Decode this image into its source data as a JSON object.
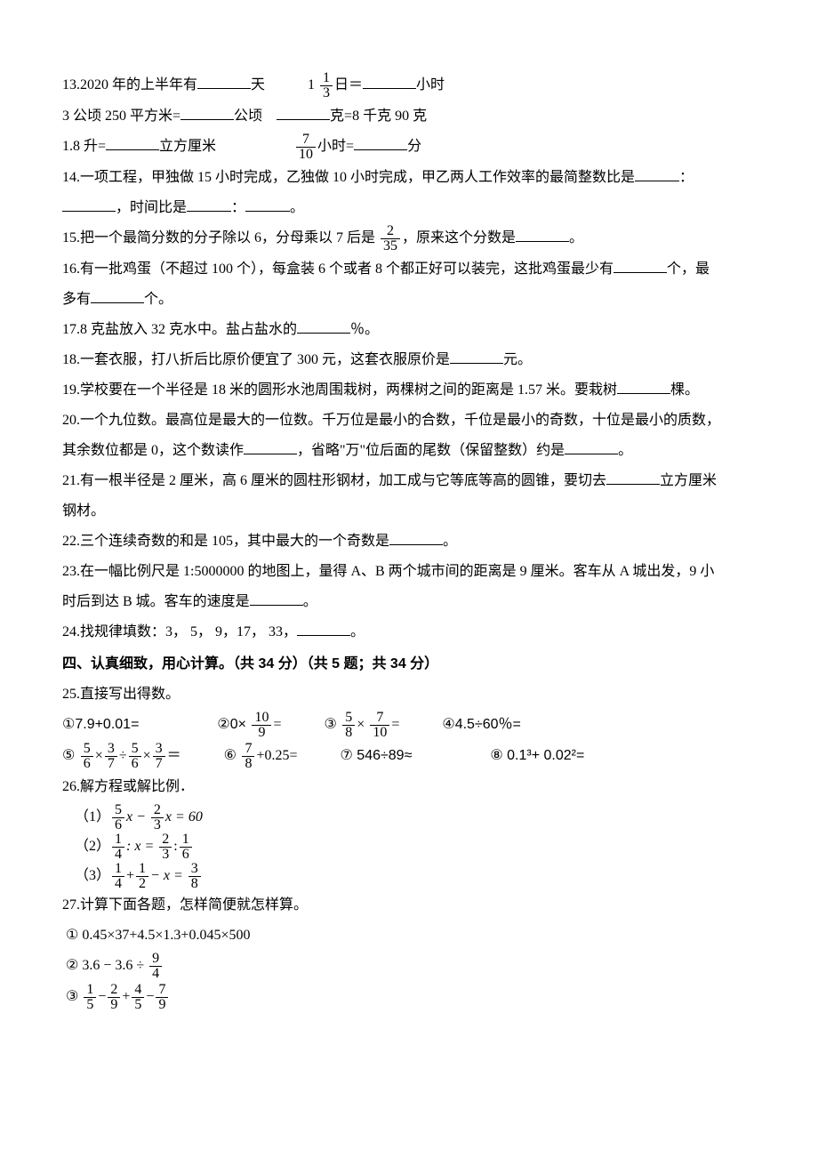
{
  "q13": {
    "part1_pre": "13.2020 年的上半年有",
    "part1_post": "天",
    "part2_pre": "1 ",
    "part2_frac_num": "1",
    "part2_frac_den": "3",
    "part2_mid": "日＝",
    "part2_post": "小时",
    "line2_a_pre": "3 公顷 250 平方米=",
    "line2_a_post": "公顷",
    "line2_b_post": "克=8 千克 90 克",
    "line3_a_pre": "1.8 升=",
    "line3_a_post": "立方厘米",
    "line3_frac_num": "7",
    "line3_frac_den": "10",
    "line3_b_mid": "小时=",
    "line3_b_post": "分"
  },
  "q14": {
    "text_a": "14.一项工程，甲独做 15 小时完成，乙独做 10 小时完成，甲乙两人工作效率的最简整数比是",
    "text_b": "：",
    "text_c": "，时间比是",
    "text_d": "：",
    "text_e": "。"
  },
  "q15": {
    "pre": "15.把一个最简分数的分子除以 6，分母乘以 7 后是 ",
    "frac_num": "2",
    "frac_den": "35",
    "mid": "，原来这个分数是",
    "post": "。"
  },
  "q16": {
    "line1": "16.有一批鸡蛋（不超过 100 个），每盒装 6 个或者 8 个都正好可以装完，这批鸡蛋最少有",
    "line1_post": "个，最",
    "line2_pre": "多有",
    "line2_post": "个。"
  },
  "q17": {
    "pre": "17.8 克盐放入 32 克水中。盐占盐水的",
    "post": "％。"
  },
  "q18": {
    "pre": "18.一套衣服，打八折后比原价便宜了 300 元，这套衣服原价是",
    "post": "元。"
  },
  "q19": {
    "pre": "19.学校要在一个半径是 18 米的圆形水池周围栽树，两棵树之间的距离是 1.57 米。要栽树",
    "post": "棵。"
  },
  "q20": {
    "line1": "20.一个九位数。最高位是最大的一位数。千万位是最小的合数，千位是最小的奇数，十位是最小的质数，",
    "line2_pre": "其余数位都是 0，这个数读作",
    "line2_mid": "，省略\"万\"位后面的尾数（保留整数）约是",
    "line2_post": "。"
  },
  "q21": {
    "pre": "21.有一根半径是 2 厘米，高 6 厘米的圆柱形钢材，加工成与它等底等高的圆锥，要切去",
    "post": "立方厘米",
    "line2": "钢材。"
  },
  "q22": {
    "pre": "22.三个连续奇数的和是 105，其中最大的一个奇数是",
    "post": "。"
  },
  "q23": {
    "line1": "23.在一幅比例尺是 1:5000000 的地图上，量得 A、B 两个城市间的距离是 9 厘米。客车从 A 城出发，9 小",
    "line2_pre": "时后到达 B 城。客车的速度是",
    "line2_post": "。"
  },
  "q24": {
    "pre": "24.找规律填数：3，  5，  9，17，  33，",
    "post": "。"
  },
  "section4": "四、认真细致，用心计算。（共 34 分）（共 5 题；共 34 分）",
  "q25": {
    "title": "25.直接写出得数。",
    "c1": "①7.9+0.01=",
    "c2_pre": "②0× ",
    "c2_num": "10",
    "c2_den": "9",
    "c2_post": "=",
    "c3_pre": "③ ",
    "c3_num1": "5",
    "c3_den1": "8",
    "c3_mid": "× ",
    "c3_num2": "7",
    "c3_den2": "10",
    "c3_post": "=",
    "c4": "④4.5÷60％=",
    "c5_pre": "⑤ ",
    "c5_n1": "5",
    "c5_d1": "6",
    "c5_n2": "3",
    "c5_d2": "7",
    "c5_n3": "5",
    "c5_d3": "6",
    "c5_n4": "3",
    "c5_d4": "7",
    "c5_op1": "×",
    "c5_op2": "÷",
    "c5_op3": "×",
    "c5_post": "＝",
    "c6_pre": "⑥ ",
    "c6_num": "7",
    "c6_den": "8",
    "c6_post": "+0.25=",
    "c7": "⑦ 546÷89≈",
    "c8": "⑧ 0.1³+ 0.02²="
  },
  "q26": {
    "title": "26.解方程或解比例．",
    "eq1_pre": "（1）",
    "eq1_n1": "5",
    "eq1_d1": "6",
    "eq1_var1": "x −",
    "eq1_n2": "2",
    "eq1_d2": "3",
    "eq1_post": "x = 60",
    "eq2_pre": "（2）",
    "eq2_n1": "1",
    "eq2_d1": "4",
    "eq2_mid1": ": x =",
    "eq2_n2": "2",
    "eq2_d2": "3",
    "eq2_mid2": ":",
    "eq2_n3": "1",
    "eq2_d3": "6",
    "eq3_pre": "（3）",
    "eq3_n1": "1",
    "eq3_d1": "4",
    "eq3_op1": "+",
    "eq3_n2": "1",
    "eq3_d2": "2",
    "eq3_mid": "− x =",
    "eq3_n3": "3",
    "eq3_d3": "8"
  },
  "q27": {
    "title": "27.计算下面各题，怎样简便就怎样算。",
    "eq1": "①  0.45×37+4.5×1.3+0.045×500",
    "eq2_pre": "②  3.6 − 3.6 ÷",
    "eq2_num": "9",
    "eq2_den": "4",
    "eq3_pre": "③ ",
    "eq3_n1": "1",
    "eq3_d1": "5",
    "eq3_op1": "−",
    "eq3_n2": "2",
    "eq3_d2": "9",
    "eq3_op2": "+",
    "eq3_n3": "4",
    "eq3_d3": "5",
    "eq3_op3": "−",
    "eq3_n4": "7",
    "eq3_d4": "9"
  },
  "colors": {
    "text": "#000000",
    "background": "#ffffff"
  },
  "fonts": {
    "body": "SimSun",
    "heading": "SimHei",
    "math": "Times New Roman",
    "size_body": 16
  }
}
